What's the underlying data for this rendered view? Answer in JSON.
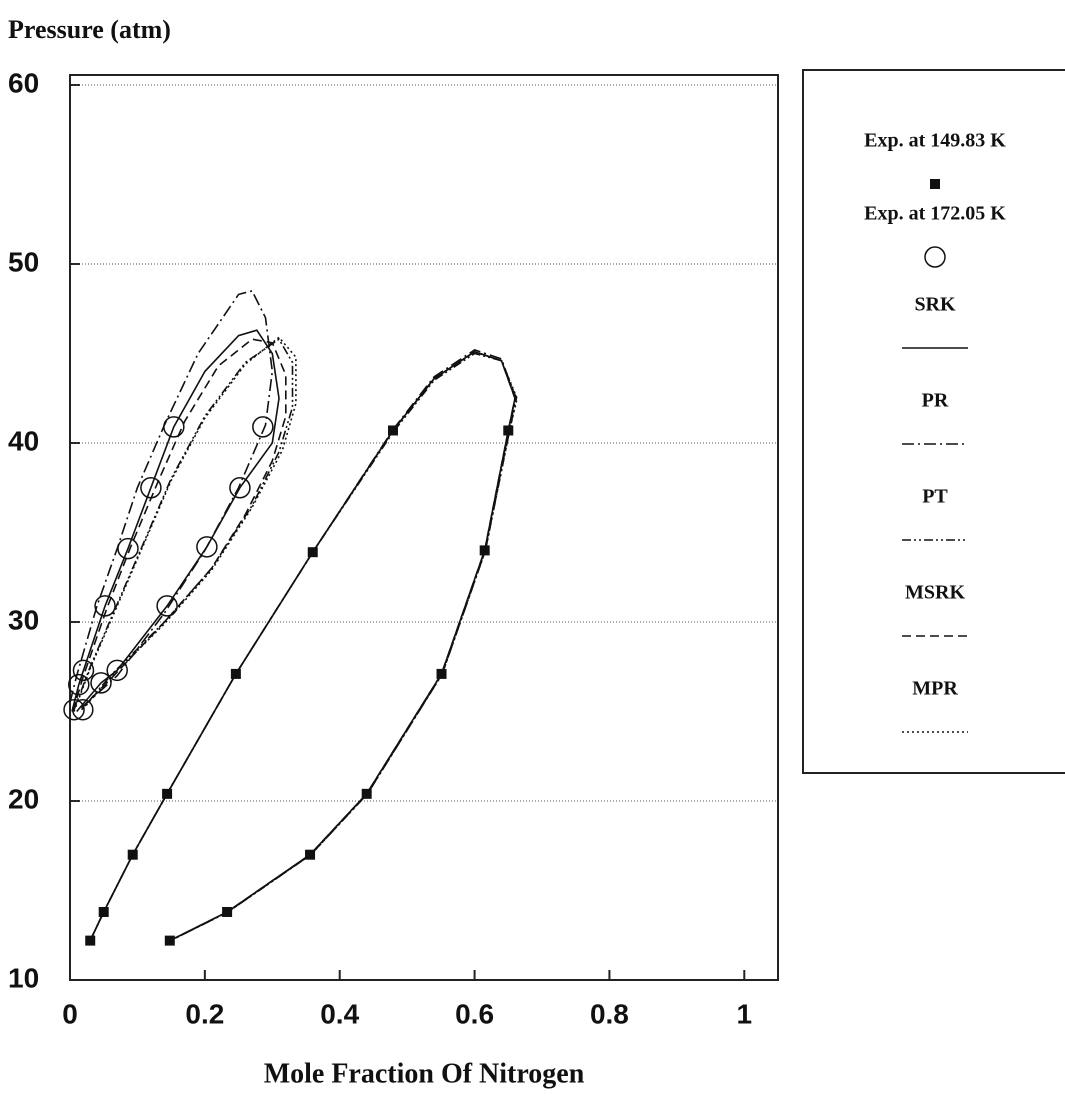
{
  "chart_data": {
    "type": "scatter-line",
    "title": "Pressure (atm)",
    "x_label": "Mole Fraction Of Nitrogen",
    "xlim": [
      0,
      1.05
    ],
    "xticks": [
      0,
      0.2,
      0.4,
      0.6,
      0.8,
      1
    ],
    "ylim": [
      10,
      60
    ],
    "yticks": [
      10,
      20,
      30,
      40,
      50,
      60
    ],
    "grid": true,
    "legend": "right",
    "series": [
      {
        "name": "Exp. at 149.83 K",
        "color": "#111111",
        "marker": "square",
        "line_style": "none",
        "x": [
          0.03,
          0.05,
          0.093,
          0.144,
          0.246,
          0.36,
          0.479,
          0.148,
          0.233,
          0.356,
          0.44,
          0.551,
          0.615,
          0.65
        ],
        "values": [
          12.2,
          13.8,
          17,
          20.4,
          27.1,
          33.9,
          40.7,
          12.2,
          13.8,
          17,
          20.4,
          27.1,
          34,
          40.7
        ]
      },
      {
        "name": "Exp. at 172.05 K",
        "color": "#111111",
        "marker": "circle",
        "line_style": "none",
        "x": [
          0.006,
          0.013,
          0.02,
          0.052,
          0.086,
          0.12,
          0.154,
          0.019,
          0.046,
          0.07,
          0.144,
          0.203,
          0.252,
          0.286
        ],
        "values": [
          25.1,
          26.5,
          27.3,
          30.9,
          34.1,
          37.5,
          40.9,
          25.1,
          26.6,
          27.3,
          30.9,
          34.2,
          37.5,
          40.9
        ]
      },
      {
        "name": "SRK",
        "color": "#111111",
        "marker": "none",
        "line_style": "solid",
        "x": [
          0.03,
          0.05,
          0.093,
          0.144,
          0.246,
          0.36,
          0.479,
          0.54,
          0.6,
          0.64,
          0.66,
          0.65,
          0.615,
          0.551,
          0.44,
          0.356,
          0.233,
          0.148,
          null,
          0.003,
          0.013,
          0.02,
          0.052,
          0.086,
          0.12,
          0.154,
          0.2,
          0.25,
          0.277,
          0.3,
          0.31,
          0.3,
          0.252,
          0.203,
          0.144,
          0.07,
          0.046,
          0.01
        ],
        "values": [
          12.2,
          13.8,
          17,
          20.4,
          27.1,
          33.9,
          40.7,
          43.6,
          45.1,
          44.6,
          42.5,
          40.7,
          34,
          27.1,
          20.4,
          17,
          13.8,
          12.2,
          null,
          25,
          26.5,
          27.3,
          30.9,
          34.1,
          37.5,
          40.9,
          44,
          46,
          46.3,
          45,
          42.5,
          40,
          37.5,
          34.2,
          30.9,
          27.3,
          26.6,
          25
        ]
      },
      {
        "name": "PR",
        "color": "#111111",
        "marker": "none",
        "line_style": "dashdot",
        "x": [
          0.03,
          0.05,
          0.093,
          0.144,
          0.246,
          0.36,
          0.48,
          0.54,
          0.6,
          0.64,
          0.661,
          0.651,
          0.616,
          0.552,
          0.441,
          0.357,
          0.234,
          0.149,
          null,
          0,
          0.01,
          0.04,
          0.07,
          0.1,
          0.14,
          0.19,
          0.25,
          0.27,
          0.29,
          0.3,
          0.29,
          0.25,
          0.2,
          0.14,
          0.07,
          0.02
        ],
        "values": [
          12.2,
          13.8,
          17,
          20.4,
          27.1,
          33.9,
          40.8,
          43.7,
          45.2,
          44.7,
          42.5,
          40.7,
          34,
          27.1,
          20.4,
          17,
          13.8,
          12.2,
          null,
          25.5,
          27,
          30.9,
          34.1,
          37.5,
          41,
          45,
          48.3,
          48.5,
          47,
          44,
          41,
          37.5,
          34,
          30.5,
          27,
          25.3
        ]
      },
      {
        "name": "PT",
        "color": "#111111",
        "marker": "none",
        "line_style": "dashdotdot",
        "x": [
          0.03,
          0.05,
          0.093,
          0.144,
          0.246,
          0.36,
          0.479,
          0.54,
          0.6,
          0.64,
          0.662,
          0.652,
          0.616,
          0.552,
          0.441,
          0.357,
          0.234,
          0.149,
          null,
          0.005,
          0.03,
          0.07,
          0.11,
          0.15,
          0.2,
          0.26,
          0.31,
          0.33,
          0.33,
          0.31,
          0.27,
          0.21,
          0.14,
          0.06,
          0.015
        ],
        "values": [
          12.2,
          13.8,
          17,
          20.4,
          27.1,
          33.9,
          40.6,
          43.5,
          45,
          44.6,
          42.5,
          40.7,
          34,
          27.1,
          20.4,
          17,
          13.8,
          12.2,
          null,
          25,
          27.5,
          31,
          34.5,
          38,
          41.5,
          44.5,
          45.8,
          44.5,
          42,
          39.5,
          36.5,
          33,
          30,
          27,
          25
        ]
      },
      {
        "name": "MSRK",
        "color": "#111111",
        "marker": "none",
        "line_style": "dashed",
        "x": [
          0.03,
          0.05,
          0.093,
          0.144,
          0.246,
          0.36,
          0.479,
          0.54,
          0.6,
          0.64,
          0.66,
          0.65,
          0.615,
          0.551,
          0.44,
          0.356,
          0.233,
          0.148,
          null,
          0.004,
          0.02,
          0.055,
          0.09,
          0.13,
          0.17,
          0.22,
          0.27,
          0.3,
          0.32,
          0.32,
          0.3,
          0.26,
          0.21,
          0.145,
          0.065,
          0.012
        ],
        "values": [
          12.2,
          13.8,
          17,
          20.4,
          27.1,
          33.9,
          40.7,
          43.6,
          45.1,
          44.6,
          42.5,
          40.7,
          34,
          27.1,
          20.4,
          17,
          13.8,
          12.2,
          null,
          25,
          27,
          30.8,
          34.2,
          37.8,
          41.2,
          44.3,
          45.8,
          45.6,
          43.8,
          41.5,
          39,
          36,
          33,
          30.2,
          27,
          25
        ]
      },
      {
        "name": "MPR",
        "color": "#111111",
        "marker": "none",
        "line_style": "dotted",
        "x": [
          0.03,
          0.05,
          0.093,
          0.144,
          0.246,
          0.36,
          0.479,
          0.54,
          0.6,
          0.64,
          0.663,
          0.652,
          0.616,
          0.552,
          0.441,
          0.357,
          0.234,
          0.149,
          null,
          0.006,
          0.03,
          0.07,
          0.11,
          0.15,
          0.2,
          0.26,
          0.31,
          0.335,
          0.335,
          0.315,
          0.27,
          0.21,
          0.14,
          0.06,
          0.016
        ],
        "values": [
          12.2,
          13.8,
          17,
          20.4,
          27.1,
          33.9,
          40.7,
          43.6,
          45.1,
          44.6,
          42.5,
          40.7,
          34,
          27.1,
          20.4,
          17,
          13.8,
          12.2,
          null,
          25,
          27.4,
          30.9,
          34.4,
          37.9,
          41.4,
          44.4,
          45.9,
          44.8,
          42.2,
          39.6,
          36.4,
          32.9,
          29.9,
          26.9,
          25
        ]
      }
    ]
  }
}
